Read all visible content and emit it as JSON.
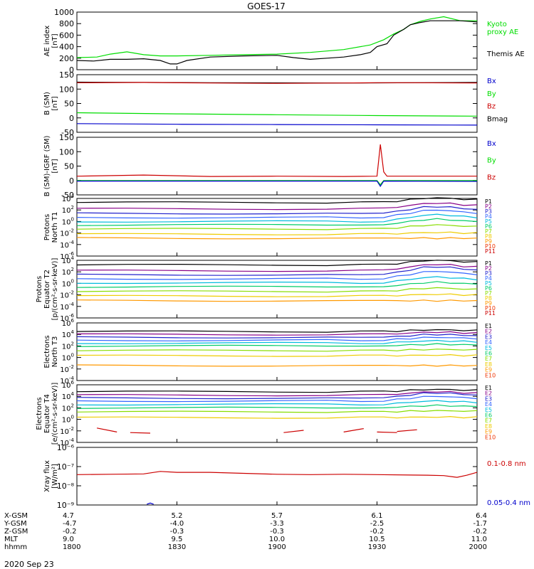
{
  "title": "GOES-17",
  "date_label": "2020 Sep 23",
  "chart_data": {
    "type": "line",
    "x_range": [
      "18:00",
      "20:00"
    ],
    "panels": [
      {
        "id": "ae",
        "ylabel": [
          "AE index",
          "[nT]"
        ],
        "ylim": [
          0,
          1000
        ],
        "log": false,
        "ticks": [
          {
            "v": 0,
            "t": "0"
          },
          {
            "v": 200,
            "t": "200"
          },
          {
            "v": 400,
            "t": "400"
          },
          {
            "v": 600,
            "t": "600"
          },
          {
            "v": 800,
            "t": "800"
          },
          {
            "v": 1000,
            "t": "1000"
          }
        ],
        "legend": [
          {
            "text": "Kyoto",
            "color": "#00dd00"
          },
          {
            "text": "proxy AE",
            "color": "#00dd00"
          },
          {
            "text": "Themis AE",
            "color": "#000000"
          }
        ],
        "series": [
          {
            "name": "Kyoto",
            "color": "#00dd00",
            "x": [
              0,
              6,
              10,
              15,
              20,
              25,
              30,
              40,
              50,
              60,
              70,
              80,
              88,
              92,
              95,
              98,
              100,
              103,
              106,
              110,
              115,
              120
            ],
            "y": [
              210,
              220,
              270,
              310,
              260,
              240,
              240,
              250,
              260,
              270,
              300,
              350,
              430,
              520,
              620,
              700,
              780,
              840,
              880,
              920,
              850,
              850
            ]
          },
          {
            "name": "Themis AE",
            "color": "#000000",
            "x": [
              0,
              5,
              10,
              15,
              20,
              25,
              28,
              30,
              33,
              40,
              50,
              60,
              65,
              70,
              75,
              80,
              85,
              88,
              90,
              93,
              95,
              98,
              100,
              103,
              106,
              110,
              115,
              120
            ],
            "y": [
              160,
              150,
              180,
              180,
              190,
              160,
              100,
              100,
              160,
              220,
              240,
              250,
              210,
              180,
              200,
              220,
              260,
              300,
              400,
              450,
              600,
              700,
              780,
              820,
              850,
              850,
              850,
              830
            ]
          }
        ]
      },
      {
        "id": "bsm",
        "ylabel": [
          "B (SM)",
          "[nT]"
        ],
        "ylim": [
          -50,
          150
        ],
        "log": false,
        "ticks": [
          {
            "v": -50,
            "t": "-50"
          },
          {
            "v": 0,
            "t": "0"
          },
          {
            "v": 50,
            "t": "50"
          },
          {
            "v": 100,
            "t": "100"
          },
          {
            "v": 150,
            "t": "150"
          }
        ],
        "legend": [
          {
            "text": "Bx",
            "color": "#0000cc"
          },
          {
            "text": "By",
            "color": "#00dd00"
          },
          {
            "text": "Bz",
            "color": "#cc0000"
          },
          {
            "text": "Bmag",
            "color": "#000000"
          }
        ],
        "series": [
          {
            "name": "Bmag",
            "color": "#000000",
            "x": [
              0,
              40,
              80,
              120
            ],
            "y": [
              124,
              122,
              121,
              123
            ]
          },
          {
            "name": "Bz",
            "color": "#cc0000",
            "x": [
              0,
              20,
              40,
              60,
              80,
              90,
              100,
              120
            ],
            "y": [
              122,
              123,
              121,
              120,
              121,
              122,
              122,
              121
            ]
          },
          {
            "name": "By",
            "color": "#00dd00",
            "x": [
              0,
              30,
              60,
              90,
              120
            ],
            "y": [
              18,
              14,
              11,
              8,
              6
            ]
          },
          {
            "name": "Bx",
            "color": "#0000cc",
            "x": [
              0,
              30,
              60,
              90,
              120
            ],
            "y": [
              -20,
              -22,
              -23,
              -24,
              -25
            ]
          }
        ]
      },
      {
        "id": "bigrf",
        "ylabel": [
          "B (SM)-IGRF (SM)",
          "[nT]"
        ],
        "ylim": [
          -50,
          150
        ],
        "log": false,
        "ticks": [
          {
            "v": -50,
            "t": "-50"
          },
          {
            "v": 0,
            "t": "0"
          },
          {
            "v": 50,
            "t": "50"
          },
          {
            "v": 100,
            "t": "100"
          },
          {
            "v": 150,
            "t": "150"
          }
        ],
        "legend": [
          {
            "text": "Bx",
            "color": "#0000cc"
          },
          {
            "text": "By",
            "color": "#00dd00"
          },
          {
            "text": "Bz",
            "color": "#cc0000"
          }
        ],
        "series": [
          {
            "name": "Bz",
            "color": "#cc0000",
            "x": [
              0,
              20,
              40,
              60,
              80,
              90,
              91,
              92,
              93,
              100,
              120
            ],
            "y": [
              15,
              19,
              14,
              15,
              14,
              15,
              125,
              30,
              15,
              15,
              15
            ]
          },
          {
            "name": "By",
            "color": "#00dd00",
            "x": [
              0,
              60,
              90,
              91,
              92,
              120
            ],
            "y": [
              0,
              0,
              0,
              -15,
              0,
              0
            ]
          },
          {
            "name": "Bx",
            "color": "#0000cc",
            "x": [
              0,
              60,
              90,
              91,
              92,
              120
            ],
            "y": [
              -2,
              -2,
              -2,
              -20,
              -2,
              -3
            ]
          }
        ]
      },
      {
        "id": "pt1",
        "ylabel": [
          "Protons",
          "North T1"
        ],
        "ylim": [
          -6,
          4
        ],
        "log": true,
        "legend_labels": [
          "P1",
          "P2",
          "P3",
          "P4",
          "P5",
          "P6",
          "P7",
          "P8",
          "P9",
          "P10",
          "P11"
        ],
        "channels": [
          3.3,
          2.2,
          1.4,
          0.7,
          0.0,
          -0.6,
          -1.3,
          -2.2,
          -2.9,
          null,
          null
        ],
        "bump": [
          0.8,
          1.0,
          1.2,
          1.3,
          1.2,
          1.0,
          0.7,
          0.3,
          0.0
        ]
      },
      {
        "id": "pt2",
        "ylabel": [
          "Protons",
          "Equator T2",
          "[p/(cm²-s-sr-keV)]"
        ],
        "ylim": [
          -6,
          4
        ],
        "log": true,
        "legend_labels": [
          "P1",
          "P2",
          "P3",
          "P4",
          "P5",
          "P6",
          "P7",
          "P8",
          "P9",
          "P10",
          "P11"
        ],
        "channels": [
          3.2,
          2.2,
          1.5,
          0.8,
          0.1,
          -0.6,
          -1.4,
          -2.2,
          -3.0,
          null,
          null
        ],
        "bump": [
          0.8,
          1.1,
          1.4,
          1.3,
          1.0,
          0.8,
          0.6,
          0.3,
          0.0
        ]
      },
      {
        "id": "et3",
        "ylabel": [
          "Electrons",
          "North T3"
        ],
        "ylim": [
          -4,
          6
        ],
        "log": true,
        "legend_labels": [
          "E1",
          "E2",
          "E3",
          "E4",
          "E5",
          "E6",
          "E7",
          "E8",
          "E9",
          "E10"
        ],
        "channels": [
          4.5,
          4.0,
          3.5,
          3.0,
          2.5,
          2.0,
          1.2,
          0.3,
          -1.4,
          null
        ],
        "bump": [
          0.3,
          0.4,
          0.5,
          0.5,
          0.4,
          0.3,
          0.2,
          0.1,
          0.0
        ]
      },
      {
        "id": "et4",
        "ylabel": [
          "Electrons",
          "Equator T4",
          "[e/(cm²-s-sr-keV)]"
        ],
        "ylim": [
          -4,
          6
        ],
        "log": true,
        "legend_labels": [
          "E1",
          "E2",
          "E3",
          "E4",
          "E5",
          "E6",
          "E7",
          "E8",
          "E9",
          "E10"
        ],
        "channels": [
          4.8,
          4.2,
          3.7,
          3.2,
          2.6,
          2.0,
          1.3,
          0.3,
          null,
          null
        ],
        "bump": [
          0.4,
          0.6,
          0.9,
          0.8,
          0.6,
          0.4,
          0.2,
          0.1,
          0.0
        ],
        "segments": [
          {
            "x": [
              6,
              12
            ],
            "y": [
              -1.5,
              -2.2
            ]
          },
          {
            "x": [
              16,
              22
            ],
            "y": [
              -2.3,
              -2.4
            ]
          },
          {
            "x": [
              62,
              68
            ],
            "y": [
              -2.3,
              -1.9
            ]
          },
          {
            "x": [
              80,
              86
            ],
            "y": [
              -2.2,
              -1.6
            ]
          },
          {
            "x": [
              90,
              96
            ],
            "y": [
              -2.2,
              -2.3
            ]
          },
          {
            "x": [
              96,
              102
            ],
            "y": [
              -2.1,
              -1.8
            ]
          }
        ]
      },
      {
        "id": "xray",
        "ylabel": [
          "Xray flux",
          "[W/m²]"
        ],
        "ylim": [
          -9,
          -6
        ],
        "log": true,
        "ticks": [
          {
            "v": -9,
            "t": "10⁻⁹"
          },
          {
            "v": -8,
            "t": "10⁻⁸"
          },
          {
            "v": -7,
            "t": "10⁻⁷"
          },
          {
            "v": -6,
            "t": "10⁻⁶"
          }
        ],
        "legend": [
          {
            "text": "0.1-0.8 nm",
            "color": "#cc0000"
          },
          {
            "text": "0.05-0.4 nm",
            "color": "#0000cc"
          }
        ],
        "series": [
          {
            "name": "0.1-0.8 nm",
            "color": "#cc0000",
            "x": [
              0,
              10,
              20,
              25,
              30,
              40,
              50,
              60,
              70,
              80,
              90,
              100,
              105,
              110,
              114,
              117,
              120
            ],
            "y": [
              -7.42,
              -7.4,
              -7.38,
              -7.25,
              -7.3,
              -7.3,
              -7.35,
              -7.4,
              -7.42,
              -7.4,
              -7.42,
              -7.44,
              -7.45,
              -7.47,
              -7.56,
              -7.45,
              -7.3
            ]
          },
          {
            "name": "0.05-0.4 nm",
            "color": "#0000cc",
            "x": [
              21,
              22,
              23
            ],
            "y": [
              -8.96,
              -8.9,
              -8.96
            ]
          }
        ]
      }
    ],
    "x_axis": {
      "row_labels": [
        "X-GSM",
        "Y-GSM",
        "Z-GSM",
        "MLT",
        "hhmm"
      ],
      "columns": [
        {
          "x": 0,
          "vals": [
            "4.7",
            "-4.7",
            "-0.2",
            "9.0",
            "1800"
          ]
        },
        {
          "x": 30,
          "vals": [
            "5.2",
            "-4.0",
            "-0.3",
            "9.5",
            "1830"
          ]
        },
        {
          "x": 60,
          "vals": [
            "5.7",
            "-3.3",
            "-0.3",
            "10.0",
            "1900"
          ]
        },
        {
          "x": 90,
          "vals": [
            "6.1",
            "-2.5",
            "-0.2",
            "10.5",
            "1930"
          ]
        },
        {
          "x": 120,
          "vals": [
            "6.4",
            "-1.7",
            "-0.2",
            "11.0",
            "2000"
          ]
        }
      ]
    }
  }
}
